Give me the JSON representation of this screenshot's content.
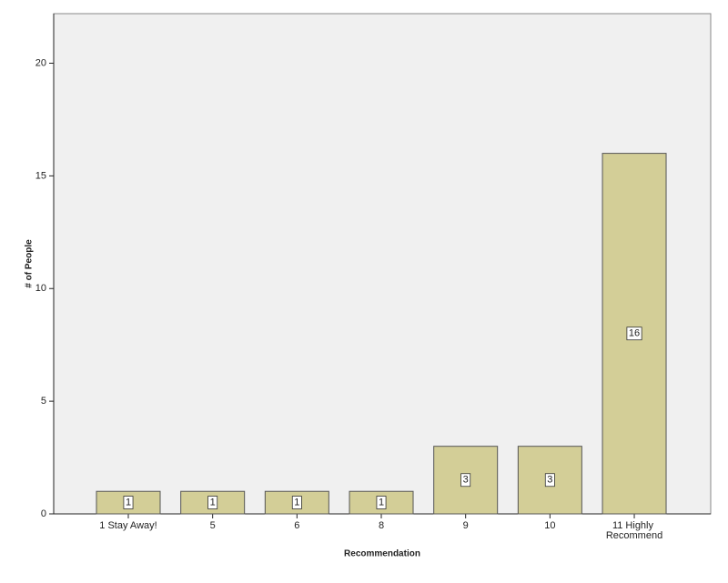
{
  "chart_data": {
    "type": "bar",
    "x_label": "Recommendation",
    "y_label": "# of People",
    "categories": [
      "1 Stay Away!",
      "5",
      "6",
      "8",
      "9",
      "10",
      "11 Highly Recommend"
    ],
    "values": [
      1,
      1,
      1,
      1,
      3,
      3,
      16
    ],
    "color": "#d3ce97",
    "ylim": [
      0,
      22.2
    ],
    "yticks": [
      0,
      5,
      10,
      15,
      20
    ],
    "value_labels_shown": true
  }
}
